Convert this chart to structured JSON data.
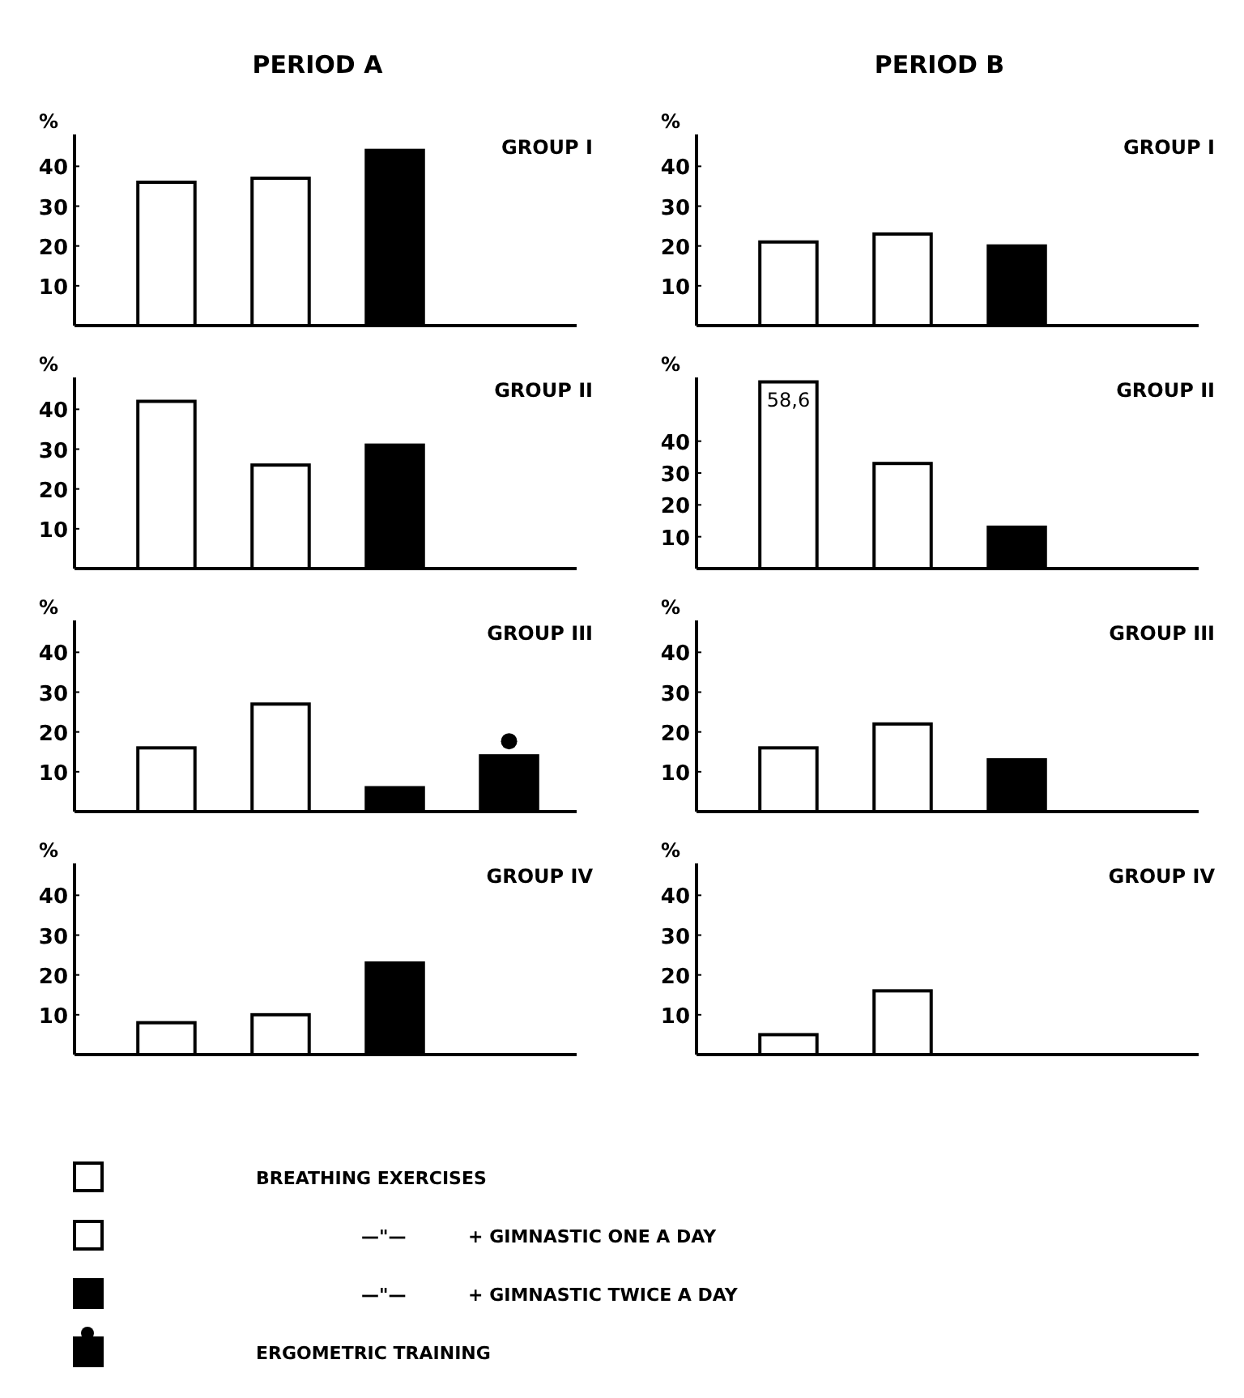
{
  "chart_data": [
    {
      "type": "bar",
      "title": "PERIOD A",
      "annotations": [
        "GROUP I"
      ],
      "ylabel": "%",
      "categories": [
        null,
        null,
        null,
        null
      ],
      "values": [
        36,
        37,
        44,
        null
      ],
      "colors": [
        "#ffffff",
        "#ffffff",
        "#000000",
        null
      ],
      "ylim": [
        0,
        48
      ],
      "yticks": [
        10,
        20,
        30,
        40
      ]
    },
    {
      "type": "bar",
      "title": "PERIOD B",
      "annotations": [
        "GROUP I"
      ],
      "ylabel": "%",
      "categories": [
        null,
        null,
        null,
        null
      ],
      "values": [
        21,
        23,
        20,
        null
      ],
      "colors": [
        "#ffffff",
        "#ffffff",
        "#000000",
        null
      ],
      "ylim": [
        0,
        48
      ],
      "yticks": [
        10,
        20,
        30,
        40
      ]
    },
    {
      "type": "bar",
      "annotations": [
        "GROUP II"
      ],
      "ylabel": "%",
      "categories": [
        null,
        null,
        null,
        null
      ],
      "values": [
        42,
        26,
        31,
        null
      ],
      "colors": [
        "#ffffff",
        "#ffffff",
        "#000000",
        null
      ],
      "ylim": [
        0,
        48
      ],
      "yticks": [
        10,
        20,
        30,
        40
      ]
    },
    {
      "type": "bar",
      "annotations": [
        "GROUP II"
      ],
      "ylabel": "%",
      "categories": [
        null,
        null,
        null,
        null
      ],
      "values": [
        58.6,
        33,
        13,
        null
      ],
      "value_labels": [
        "58,6",
        null,
        null,
        null
      ],
      "colors": [
        "#ffffff",
        "#ffffff",
        "#000000",
        null
      ],
      "ylim": [
        0,
        60
      ],
      "yticks": [
        10,
        20,
        30,
        40
      ]
    },
    {
      "type": "bar",
      "annotations": [
        "GROUP III"
      ],
      "ylabel": "%",
      "categories": [
        null,
        null,
        null,
        null
      ],
      "values": [
        16,
        27,
        6,
        14
      ],
      "colors": [
        "#ffffff",
        "#ffffff",
        "#000000",
        "#000000"
      ],
      "ylim": [
        0,
        48
      ],
      "yticks": [
        10,
        20,
        30,
        40
      ]
    },
    {
      "type": "bar",
      "annotations": [
        "GROUP III"
      ],
      "ylabel": "%",
      "categories": [
        null,
        null,
        null,
        null
      ],
      "values": [
        16,
        22,
        13,
        null
      ],
      "colors": [
        "#ffffff",
        "#ffffff",
        "#000000",
        null
      ],
      "ylim": [
        0,
        48
      ],
      "yticks": [
        10,
        20,
        30,
        40
      ]
    },
    {
      "type": "bar",
      "annotations": [
        "GROUP IV"
      ],
      "ylabel": "%",
      "categories": [
        null,
        null,
        null,
        null
      ],
      "values": [
        8,
        10,
        23,
        null
      ],
      "colors": [
        "#ffffff",
        "#ffffff",
        "#000000",
        null
      ],
      "ylim": [
        0,
        48
      ],
      "yticks": [
        10,
        20,
        30,
        40
      ]
    },
    {
      "type": "bar",
      "annotations": [
        "GROUP IV"
      ],
      "ylabel": "%",
      "categories": [
        null,
        null,
        null,
        null
      ],
      "values": [
        5,
        16,
        null,
        null
      ],
      "colors": [
        "#ffffff",
        "#ffffff",
        null,
        null
      ],
      "ylim": [
        0,
        48
      ],
      "yticks": [
        10,
        20,
        30,
        40
      ]
    },
    {
      "type": "other",
      "annotations": [
        "BREATHING EXERCISES",
        "—\"—          + GIMNASTIC ONE A DAY",
        "—\"—          + GIMNASTIC TWICE A DAY",
        "ERGOMETRIC TRAINING"
      ]
    }
  ]
}
